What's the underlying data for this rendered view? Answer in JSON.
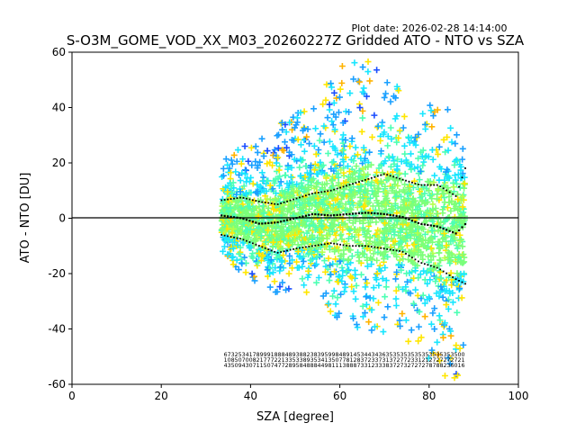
{
  "plot_date": "Plot date: 2026-02-28 14:14:00",
  "chart_data": {
    "type": "scatter",
    "title": "S-O3M_GOME_VOD_XX_M03_20260227Z Gridded ATO - NTO vs SZA",
    "xlabel": "SZA [degree]",
    "ylabel": "ATO - NTO [DU]",
    "xlim": [
      0,
      100
    ],
    "ylim": [
      -60,
      60
    ],
    "xticks": [
      0,
      20,
      40,
      60,
      80,
      100
    ],
    "yticks": [
      -60,
      -40,
      -20,
      0,
      20,
      40,
      60
    ],
    "zero_line": 0,
    "marker": "+",
    "density_colors": [
      "#1a4dff",
      "#1aa0ff",
      "#19e6ff",
      "#4dffb3",
      "#7cff79",
      "#b3ff4d",
      "#ffe600",
      "#ffb300"
    ],
    "scatter_envelope": [
      {
        "sza": 33.5,
        "low": -12,
        "high": 20
      },
      {
        "sza": 36,
        "low": -17,
        "high": 24
      },
      {
        "sza": 40,
        "low": -23,
        "high": 27
      },
      {
        "sza": 44,
        "low": -28,
        "high": 30
      },
      {
        "sza": 48,
        "low": -27,
        "high": 37
      },
      {
        "sza": 52,
        "low": -27,
        "high": 42
      },
      {
        "sza": 56,
        "low": -30,
        "high": 50
      },
      {
        "sza": 60,
        "low": -38,
        "high": 55
      },
      {
        "sza": 64,
        "low": -42,
        "high": 58
      },
      {
        "sza": 68,
        "low": -44,
        "high": 57
      },
      {
        "sza": 72,
        "low": -42,
        "high": 50
      },
      {
        "sza": 76,
        "low": -46,
        "high": 43
      },
      {
        "sza": 80,
        "low": -52,
        "high": 42
      },
      {
        "sza": 84,
        "low": -58,
        "high": 40
      },
      {
        "sza": 88,
        "low": -60,
        "high": 30
      }
    ],
    "mean": [
      {
        "sza": 33.5,
        "value": 1.0
      },
      {
        "sza": 38,
        "value": 0.0
      },
      {
        "sza": 42,
        "value": -2.0
      },
      {
        "sza": 46,
        "value": -1.5
      },
      {
        "sza": 50,
        "value": 0.0
      },
      {
        "sza": 54,
        "value": 1.5
      },
      {
        "sza": 58,
        "value": 1.0
      },
      {
        "sza": 62,
        "value": 1.5
      },
      {
        "sza": 66,
        "value": 2.0
      },
      {
        "sza": 70,
        "value": 1.5
      },
      {
        "sza": 74,
        "value": 0.5
      },
      {
        "sza": 78,
        "value": -2.0
      },
      {
        "sza": 82,
        "value": -3.0
      },
      {
        "sza": 86,
        "value": -5.5
      },
      {
        "sza": 88.5,
        "value": -1.5
      }
    ],
    "upper_sigma": [
      {
        "sza": 33.5,
        "value": 6.5
      },
      {
        "sza": 38,
        "value": 7.5
      },
      {
        "sza": 42,
        "value": 6.0
      },
      {
        "sza": 46,
        "value": 5.0
      },
      {
        "sza": 50,
        "value": 7.0
      },
      {
        "sza": 54,
        "value": 9.0
      },
      {
        "sza": 58,
        "value": 10.0
      },
      {
        "sza": 62,
        "value": 12.0
      },
      {
        "sza": 66,
        "value": 14.0
      },
      {
        "sza": 70,
        "value": 16.0
      },
      {
        "sza": 74,
        "value": 14.0
      },
      {
        "sza": 78,
        "value": 12.0
      },
      {
        "sza": 82,
        "value": 12.0
      },
      {
        "sza": 86,
        "value": 8.0
      },
      {
        "sza": 88.5,
        "value": 20.0
      }
    ],
    "lower_sigma": [
      {
        "sza": 33.5,
        "value": -6.0
      },
      {
        "sza": 38,
        "value": -7.5
      },
      {
        "sza": 42,
        "value": -10.0
      },
      {
        "sza": 46,
        "value": -12.5
      },
      {
        "sza": 50,
        "value": -11.0
      },
      {
        "sza": 54,
        "value": -10.0
      },
      {
        "sza": 58,
        "value": -9.0
      },
      {
        "sza": 62,
        "value": -10.0
      },
      {
        "sza": 66,
        "value": -10.0
      },
      {
        "sza": 70,
        "value": -11.0
      },
      {
        "sza": 74,
        "value": -12.0
      },
      {
        "sza": 78,
        "value": -16.0
      },
      {
        "sza": 82,
        "value": -18.0
      },
      {
        "sza": 86,
        "value": -22.0
      },
      {
        "sza": 88.5,
        "value": -24.0
      }
    ],
    "annotation_rows": [
      "6732534178999188848938823839599848914534434363535353535353535353500",
      "1085070082177722133533893534135077812837233731372772331212727272721",
      "4350943071150747728958488844981113888733123338372732727278788236016"
    ],
    "annotation_sza_range": [
      34,
      88
    ]
  }
}
